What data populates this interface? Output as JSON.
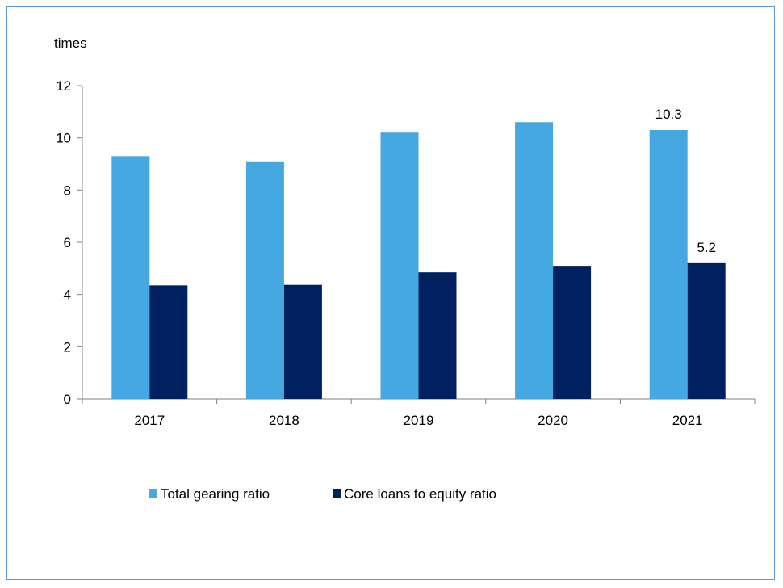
{
  "chart_data": {
    "type": "bar",
    "unit_label": "times",
    "categories": [
      "2017",
      "2018",
      "2019",
      "2020",
      "2021"
    ],
    "series": [
      {
        "name": "Total gearing ratio",
        "color": "#45a8e0",
        "values": [
          9.3,
          9.1,
          10.2,
          10.6,
          10.3
        ],
        "data_labels": [
          "",
          "",
          "",
          "",
          "10.3"
        ]
      },
      {
        "name": "Core loans to equity ratio",
        "color": "#002060",
        "values": [
          4.35,
          4.37,
          4.85,
          5.1,
          5.2
        ],
        "data_labels": [
          "",
          "",
          "",
          "",
          "5.2"
        ]
      }
    ],
    "ylim": [
      0,
      12
    ],
    "yticks": [
      0,
      2,
      4,
      6,
      8,
      10,
      12
    ],
    "grid": false,
    "legend_position": "bottom"
  }
}
